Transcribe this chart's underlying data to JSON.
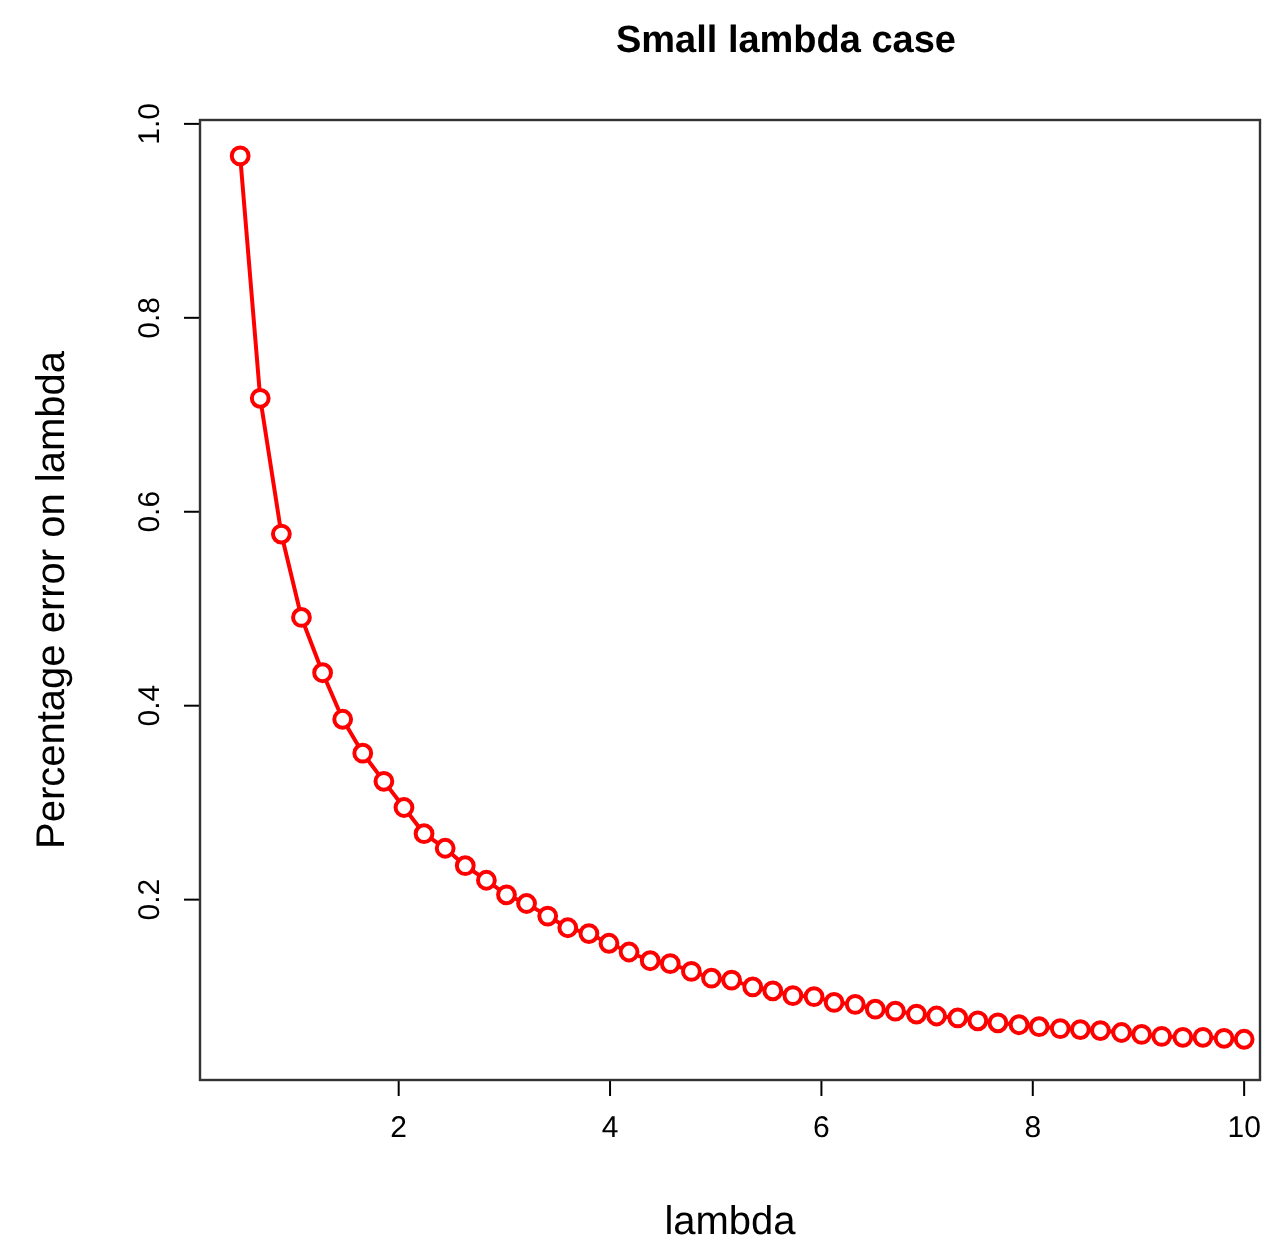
{
  "chart_data": {
    "type": "line",
    "title": "Small lambda case",
    "xlabel": "lambda",
    "ylabel": "Percentage error on lambda",
    "x": [
      0.5,
      0.69,
      0.89,
      1.08,
      1.28,
      1.47,
      1.66,
      1.86,
      2.05,
      2.24,
      2.44,
      2.63,
      2.83,
      3.02,
      3.21,
      3.41,
      3.6,
      3.8,
      3.99,
      4.18,
      4.38,
      4.57,
      4.77,
      4.96,
      5.15,
      5.35,
      5.54,
      5.73,
      5.93,
      6.12,
      6.32,
      6.51,
      6.7,
      6.9,
      7.09,
      7.29,
      7.48,
      7.67,
      7.87,
      8.06,
      8.26,
      8.45,
      8.64,
      8.84,
      9.03,
      9.22,
      9.42,
      9.61,
      9.81,
      10
    ],
    "series": [
      {
        "color": "#ff0000",
        "values": [
          0.967,
          0.717,
          0.577,
          0.491,
          0.434,
          0.386,
          0.351,
          0.322,
          0.295,
          0.268,
          0.253,
          0.235,
          0.22,
          0.205,
          0.196,
          0.183,
          0.171,
          0.165,
          0.155,
          0.146,
          0.137,
          0.134,
          0.126,
          0.119,
          0.117,
          0.11,
          0.106,
          0.101,
          0.1,
          0.094,
          0.092,
          0.087,
          0.085,
          0.082,
          0.08,
          0.078,
          0.075,
          0.073,
          0.071,
          0.069,
          0.067,
          0.066,
          0.065,
          0.063,
          0.061,
          0.059,
          0.058,
          0.058,
          0.057,
          0.056
        ]
      }
    ],
    "xlim": [
      0.12,
      10.15
    ],
    "ylim": [
      0.014,
      1.004
    ],
    "xticks": [
      2,
      4,
      6,
      8,
      10
    ],
    "yticks": [
      0.2,
      0.4,
      0.6,
      0.8,
      {
        "value": 1,
        "label": "1.0"
      }
    ],
    "marker": "circle",
    "line_style": "solid"
  }
}
